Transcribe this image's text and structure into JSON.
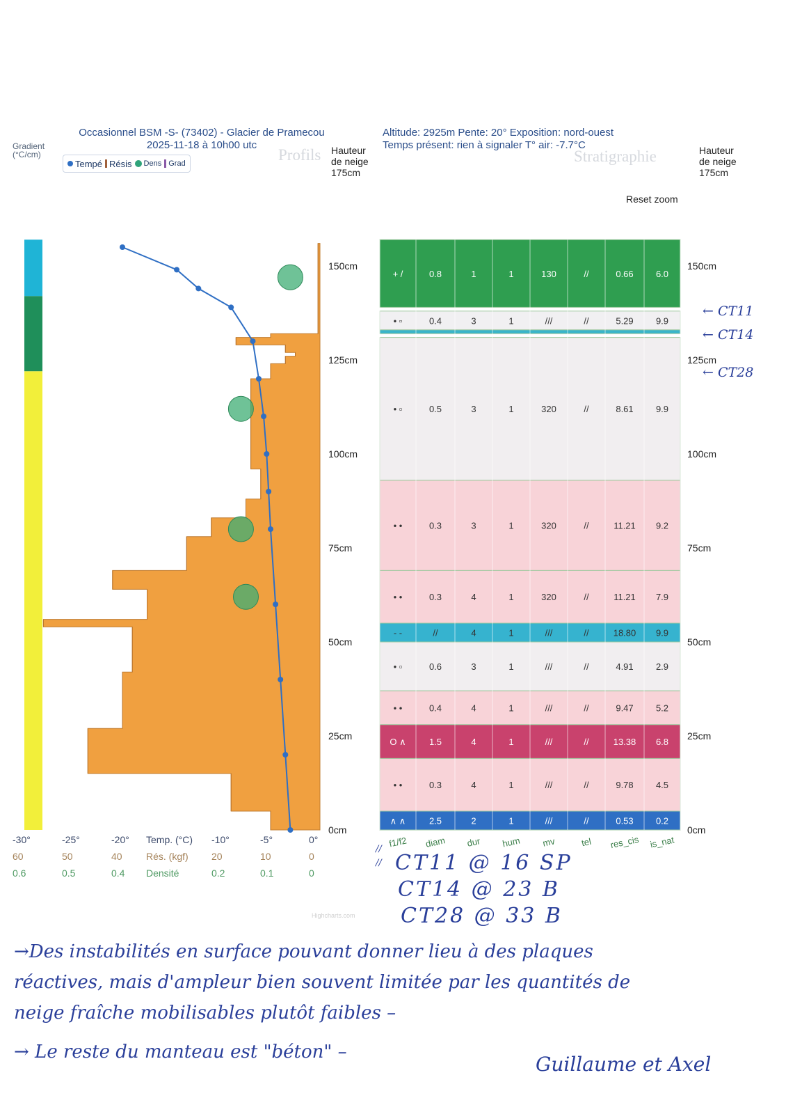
{
  "header": {
    "title_line1": "Occasionnel BSM -S- (73402) - Glacier de Pramecou",
    "title_line2": "2025-11-18 à 10h00 utc",
    "meta_line1": "Altitude: 2925m Pente: 20° Exposition: nord-ouest",
    "meta_line2": "Temps présent: rien à signaler T° air: -7.7°C"
  },
  "left_panel": {
    "gradient_label": "Gradient",
    "gradient_unit": "(°C/cm)",
    "watermark": "Profils",
    "height_label": [
      "Hauteur",
      "de neige",
      "175cm"
    ],
    "legend": [
      {
        "label": "Tempé",
        "color": "#2f6fc4",
        "icon": "circle"
      },
      {
        "label": "Résis",
        "color": "#a0603a",
        "icon": "bar"
      },
      {
        "label": "Dens",
        "color": "#2fa37a",
        "icon": "circle"
      },
      {
        "label": "Grad",
        "color": "#8a5aa8",
        "icon": "bar"
      }
    ],
    "x_axis_rows": {
      "temp": {
        "ticks": [
          "-30°",
          "-25°",
          "-20°",
          "-10°",
          "-5°",
          "0°"
        ],
        "label": "Temp. (°C)",
        "color": "#3c4a6b"
      },
      "res": {
        "ticks": [
          "60",
          "50",
          "40",
          "20",
          "10",
          "0"
        ],
        "label": "Rés. (kgf)",
        "color": "#a5835a"
      },
      "dens": {
        "ticks": [
          "0.6",
          "0.5",
          "0.4",
          "0.2",
          "0.1",
          "0"
        ],
        "label": "Densité",
        "color": "#4f9a63"
      }
    }
  },
  "right_panel": {
    "watermark": "Stratigraphie",
    "height_label": [
      "Hauteur",
      "de neige",
      "175cm"
    ],
    "reset_zoom": "Reset zoom",
    "column_labels": [
      "f1/f2",
      "diam",
      "dur",
      "hum",
      "mv",
      "tel",
      "res_cis",
      "is_nat"
    ]
  },
  "y_ticks": [
    "150cm",
    "125cm",
    "100cm",
    "75cm",
    "50cm",
    "25cm",
    "0cm"
  ],
  "chart_data": {
    "type": "profile",
    "y_unit": "cm",
    "ylim": [
      0,
      175
    ],
    "temperature": {
      "name": "Temp. (°C)",
      "color": "#2f6fc4",
      "points": [
        {
          "h": 155,
          "t": -20.0
        },
        {
          "h": 149,
          "t": -14.5
        },
        {
          "h": 144,
          "t": -12.3
        },
        {
          "h": 139,
          "t": -9.0
        },
        {
          "h": 130,
          "t": -6.8
        },
        {
          "h": 120,
          "t": -6.2
        },
        {
          "h": 110,
          "t": -5.7
        },
        {
          "h": 100,
          "t": -5.4
        },
        {
          "h": 90,
          "t": -5.2
        },
        {
          "h": 80,
          "t": -5.0
        },
        {
          "h": 60,
          "t": -4.5
        },
        {
          "h": 40,
          "t": -4.0
        },
        {
          "h": 20,
          "t": -3.5
        },
        {
          "h": 0,
          "t": -3.0
        }
      ]
    },
    "resistance_kgf": [
      {
        "from": 0,
        "to": 5,
        "r": 10
      },
      {
        "from": 5,
        "to": 15,
        "r": 18
      },
      {
        "from": 15,
        "to": 27,
        "r": 47
      },
      {
        "from": 27,
        "to": 42,
        "r": 40
      },
      {
        "from": 42,
        "to": 54,
        "r": 38
      },
      {
        "from": 54,
        "to": 56,
        "r": 56
      },
      {
        "from": 56,
        "to": 59,
        "r": 35
      },
      {
        "from": 59,
        "to": 64,
        "r": 35
      },
      {
        "from": 64,
        "to": 69,
        "r": 42
      },
      {
        "from": 69,
        "to": 78,
        "r": 27
      },
      {
        "from": 78,
        "to": 81,
        "r": 22
      },
      {
        "from": 81,
        "to": 83,
        "r": 22
      },
      {
        "from": 83,
        "to": 88,
        "r": 15
      },
      {
        "from": 88,
        "to": 96,
        "r": 12
      },
      {
        "from": 96,
        "to": 108,
        "r": 14
      },
      {
        "from": 108,
        "to": 114,
        "r": 14
      },
      {
        "from": 114,
        "to": 120,
        "r": 14
      },
      {
        "from": 120,
        "to": 124,
        "r": 10
      },
      {
        "from": 124,
        "to": 126,
        "r": 7
      },
      {
        "from": 126,
        "to": 127,
        "r": 5
      },
      {
        "from": 127,
        "to": 129,
        "r": 7
      },
      {
        "from": 129,
        "to": 131,
        "r": 17
      },
      {
        "from": 131,
        "to": 132,
        "r": 10
      },
      {
        "from": 132,
        "to": 156,
        "r": 0.4
      }
    ],
    "density": [
      {
        "h": 147,
        "d": 0.12
      },
      {
        "h": 112,
        "d": 0.32
      },
      {
        "h": 80,
        "d": 0.32
      },
      {
        "h": 62,
        "d": 0.3
      }
    ],
    "gradient_bar": [
      {
        "from": 0,
        "to": 122,
        "color": "#f2ef3a"
      },
      {
        "from": 122,
        "to": 142,
        "color": "#1f8f5a"
      },
      {
        "from": 142,
        "to": 157,
        "color": "#1fb4d6"
      }
    ],
    "layers": [
      {
        "from": 139,
        "to": 157,
        "color": "#2f9e50",
        "f1f2": "+ /",
        "diam": "0.8",
        "dur": "1",
        "hum": "1",
        "mv": "130",
        "tel": "//",
        "res_cis": "0.66",
        "is_nat": "6.0"
      },
      {
        "from": 133,
        "to": 138,
        "color": "#f1f0f2",
        "f1f2": "• ▫",
        "diam": "0.4",
        "dur": "3",
        "hum": "1",
        "mv": "///",
        "tel": "//",
        "res_cis": "5.29",
        "is_nat": "9.9"
      },
      {
        "from": 132,
        "to": 133,
        "color": "#3ab5c9"
      },
      {
        "from": 93,
        "to": 131,
        "color": "#f1eef0",
        "f1f2": "• ▫",
        "diam": "0.5",
        "dur": "3",
        "hum": "1",
        "mv": "320",
        "tel": "//",
        "res_cis": "8.61",
        "is_nat": "9.9"
      },
      {
        "from": 69,
        "to": 93,
        "color": "#f8d3d8",
        "f1f2": "• •",
        "diam": "0.3",
        "dur": "3",
        "hum": "1",
        "mv": "320",
        "tel": "//",
        "res_cis": "11.21",
        "is_nat": "9.2"
      },
      {
        "from": 55,
        "to": 69,
        "color": "#f8d3d8",
        "f1f2": "• •",
        "diam": "0.3",
        "dur": "4",
        "hum": "1",
        "mv": "320",
        "tel": "//",
        "res_cis": "11.21",
        "is_nat": "7.9"
      },
      {
        "from": 50,
        "to": 55,
        "color": "#36b3cf",
        "f1f2": "- -",
        "diam": "//",
        "dur": "4",
        "hum": "1",
        "mv": "///",
        "tel": "//",
        "res_cis": "18.80",
        "is_nat": "9.9"
      },
      {
        "from": 37,
        "to": 50,
        "color": "#f1eef0",
        "f1f2": "• ▫",
        "diam": "0.6",
        "dur": "3",
        "hum": "1",
        "mv": "///",
        "tel": "//",
        "res_cis": "4.91",
        "is_nat": "2.9"
      },
      {
        "from": 28,
        "to": 37,
        "color": "#f8d3d8",
        "f1f2": "• •",
        "diam": "0.4",
        "dur": "4",
        "hum": "1",
        "mv": "///",
        "tel": "//",
        "res_cis": "9.47",
        "is_nat": "5.2"
      },
      {
        "from": 19,
        "to": 28,
        "color": "#c9426d",
        "f1f2": "O ∧",
        "diam": "1.5",
        "dur": "4",
        "hum": "1",
        "mv": "///",
        "tel": "//",
        "res_cis": "13.38",
        "is_nat": "6.8"
      },
      {
        "from": 5,
        "to": 19,
        "color": "#f8d3d8",
        "f1f2": "• •",
        "diam": "0.3",
        "dur": "4",
        "hum": "1",
        "mv": "///",
        "tel": "//",
        "res_cis": "9.78",
        "is_nat": "4.5"
      },
      {
        "from": 0,
        "to": 5,
        "color": "#2f6fc4",
        "f1f2": "∧ ∧",
        "diam": "2.5",
        "dur": "2",
        "hum": "1",
        "mv": "///",
        "tel": "//",
        "res_cis": "0.53",
        "is_nat": "0.2"
      }
    ]
  },
  "annotations": {
    "ct_arrows": [
      "CT11",
      "CT14",
      "CT28"
    ],
    "slashes": [
      "//",
      "//"
    ],
    "ct_results": [
      "CT11 @ 16 SP",
      "CT14 @ 23 B",
      "CT28 @ 33 B"
    ],
    "notes": [
      "→Des instabilités en surface pouvant donner lieu à des plaques",
      "réactives, mais d'ampleur bien souvent limitée par les quantités de",
      "neige fraîche mobilisables plutôt faibles –",
      "→ Le reste du manteau est \"béton\" –"
    ],
    "signature": "Guillaume et Axel"
  },
  "credit": "Highcharts.com"
}
